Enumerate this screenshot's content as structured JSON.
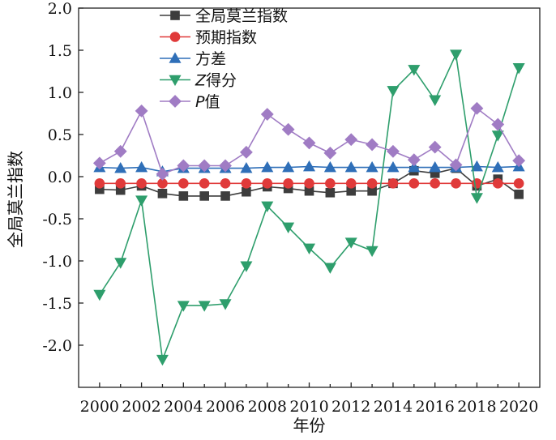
{
  "chart_data": {
    "type": "line",
    "title": "",
    "xlabel": "年份",
    "ylabel": "全局莫兰指数",
    "x": [
      2000,
      2001,
      2002,
      2003,
      2004,
      2005,
      2006,
      2007,
      2008,
      2009,
      2010,
      2011,
      2012,
      2013,
      2014,
      2015,
      2016,
      2017,
      2018,
      2019,
      2020
    ],
    "xlim": [
      1999,
      2021
    ],
    "ylim": [
      -2.5,
      2.0
    ],
    "x_ticks": [
      "2000",
      "2002",
      "2004",
      "2006",
      "2008",
      "2010",
      "2012",
      "2014",
      "2016",
      "2018",
      "2020"
    ],
    "y_ticks": [
      "2.0",
      "1.5",
      "1.0",
      "0.5",
      "0.0",
      "-0.5",
      "-1.0",
      "-1.5",
      "-2.0"
    ],
    "y_tick_values": [
      2.0,
      1.5,
      1.0,
      0.5,
      0.0,
      -0.5,
      -1.0,
      -1.5,
      -2.0
    ],
    "legend_position": "top-center",
    "series": [
      {
        "name": "全局莫兰指数",
        "italic_prefix": "",
        "label_rest": "全局莫兰指数",
        "marker": "square",
        "color": "#3d3d3d",
        "values": [
          -0.15,
          -0.16,
          -0.11,
          -0.2,
          -0.23,
          -0.23,
          -0.23,
          -0.18,
          -0.12,
          -0.14,
          -0.17,
          -0.19,
          -0.17,
          -0.17,
          -0.08,
          0.07,
          0.04,
          0.1,
          -0.11,
          -0.03,
          -0.21
        ]
      },
      {
        "name": "预期指数",
        "italic_prefix": "",
        "label_rest": "预期指数",
        "marker": "circle",
        "color": "#e03a3a",
        "values": [
          -0.08,
          -0.08,
          -0.08,
          -0.08,
          -0.08,
          -0.08,
          -0.08,
          -0.08,
          -0.08,
          -0.08,
          -0.08,
          -0.08,
          -0.08,
          -0.08,
          -0.08,
          -0.08,
          -0.08,
          -0.08,
          -0.08,
          -0.08,
          -0.08
        ]
      },
      {
        "name": "方差",
        "italic_prefix": "",
        "label_rest": "方差",
        "marker": "triangle-up",
        "color": "#2f6fb8",
        "values": [
          0.11,
          0.1,
          0.11,
          0.06,
          0.1,
          0.1,
          0.1,
          0.1,
          0.11,
          0.11,
          0.12,
          0.11,
          0.11,
          0.11,
          0.11,
          0.11,
          0.11,
          0.11,
          0.12,
          0.11,
          0.12
        ]
      },
      {
        "name": "Z得分",
        "italic_prefix": "Z",
        "label_rest": "得分",
        "marker": "triangle-down",
        "color": "#2e9e6c",
        "values": [
          -1.4,
          -1.02,
          -0.28,
          -2.17,
          -1.53,
          -1.53,
          -1.51,
          -1.06,
          -0.35,
          -0.6,
          -0.85,
          -1.08,
          -0.78,
          -0.88,
          1.02,
          1.27,
          0.91,
          1.45,
          -0.25,
          0.49,
          1.29
        ]
      },
      {
        "name": "P值",
        "italic_prefix": "P",
        "label_rest": "值",
        "marker": "diamond",
        "color": "#a07cc4",
        "values": [
          0.16,
          0.3,
          0.78,
          0.03,
          0.13,
          0.13,
          0.13,
          0.29,
          0.74,
          0.56,
          0.4,
          0.28,
          0.44,
          0.38,
          0.3,
          0.2,
          0.35,
          0.14,
          0.81,
          0.62,
          0.19
        ]
      }
    ]
  }
}
